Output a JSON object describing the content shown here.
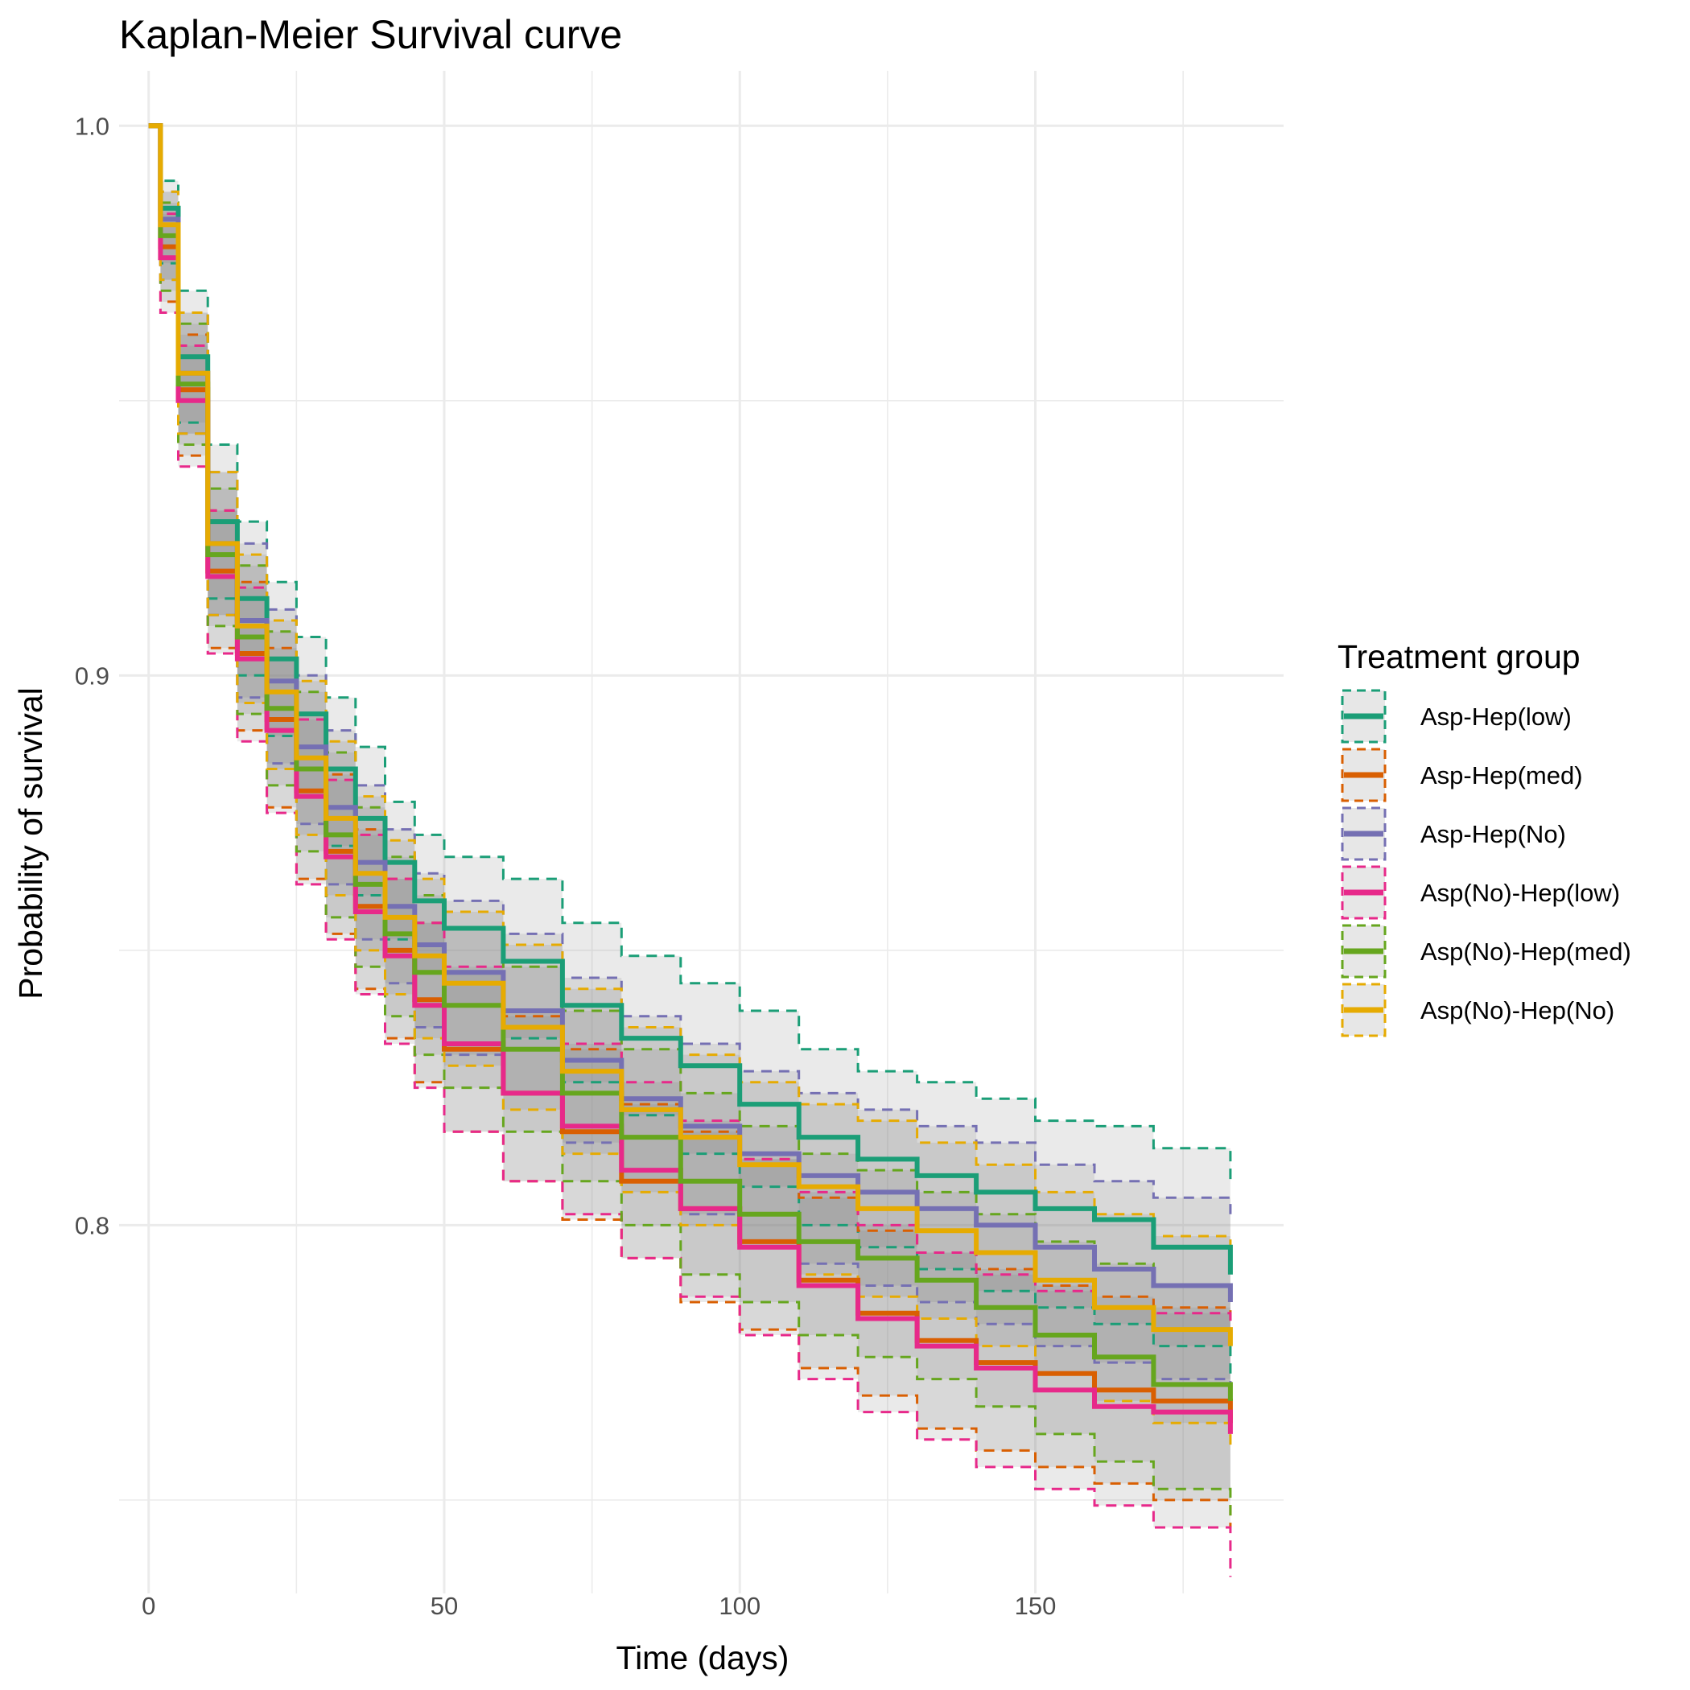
{
  "chart_data": {
    "type": "line",
    "title": "Kaplan-Meier Survival curve",
    "xlabel": "Time (days)",
    "ylabel": "Probability of survival",
    "xlim": [
      -5,
      192
    ],
    "ylim": [
      0.733,
      1.01
    ],
    "x_ticks": [
      0,
      50,
      100,
      150
    ],
    "x_tick_labels": [
      "0",
      "50",
      "100",
      "150"
    ],
    "y_ticks": [
      0.8,
      0.9,
      1.0
    ],
    "y_tick_labels": [
      "0.8",
      "0.9",
      "1.0"
    ],
    "grid": true,
    "legend": {
      "title": "Treatment group",
      "position": "right"
    },
    "x": [
      0,
      2,
      5,
      10,
      15,
      20,
      25,
      30,
      35,
      40,
      45,
      50,
      60,
      70,
      80,
      90,
      100,
      110,
      120,
      130,
      140,
      150,
      160,
      170,
      183
    ],
    "series": [
      {
        "name": "Asp-Hep(low)",
        "color": "#1b9e77",
        "values": [
          1.0,
          0.985,
          0.958,
          0.928,
          0.914,
          0.903,
          0.893,
          0.883,
          0.874,
          0.866,
          0.859,
          0.854,
          0.848,
          0.84,
          0.834,
          0.829,
          0.822,
          0.816,
          0.812,
          0.809,
          0.806,
          0.803,
          0.801,
          0.796,
          0.791
        ],
        "upper": [
          1.0,
          0.99,
          0.97,
          0.942,
          0.928,
          0.917,
          0.907,
          0.896,
          0.887,
          0.877,
          0.871,
          0.867,
          0.863,
          0.855,
          0.849,
          0.844,
          0.839,
          0.832,
          0.828,
          0.826,
          0.823,
          0.819,
          0.818,
          0.814,
          0.808
        ],
        "lower": [
          1.0,
          0.975,
          0.946,
          0.914,
          0.9,
          0.889,
          0.879,
          0.869,
          0.86,
          0.852,
          0.846,
          0.84,
          0.834,
          0.826,
          0.82,
          0.813,
          0.807,
          0.8,
          0.796,
          0.792,
          0.788,
          0.785,
          0.782,
          0.778,
          0.773
        ]
      },
      {
        "name": "Asp-Hep(med)",
        "color": "#d95f02",
        "values": [
          1.0,
          0.978,
          0.952,
          0.919,
          0.904,
          0.892,
          0.879,
          0.868,
          0.858,
          0.85,
          0.841,
          0.832,
          0.824,
          0.817,
          0.808,
          0.803,
          0.797,
          0.79,
          0.784,
          0.779,
          0.775,
          0.773,
          0.77,
          0.768,
          0.764
        ],
        "upper": [
          1.0,
          0.985,
          0.962,
          0.93,
          0.917,
          0.905,
          0.893,
          0.882,
          0.872,
          0.863,
          0.855,
          0.846,
          0.838,
          0.832,
          0.822,
          0.817,
          0.812,
          0.805,
          0.799,
          0.795,
          0.792,
          0.789,
          0.787,
          0.785,
          0.782
        ],
        "lower": [
          1.0,
          0.968,
          0.94,
          0.905,
          0.89,
          0.876,
          0.863,
          0.853,
          0.843,
          0.834,
          0.826,
          0.817,
          0.808,
          0.801,
          0.794,
          0.786,
          0.781,
          0.774,
          0.769,
          0.763,
          0.759,
          0.756,
          0.753,
          0.75,
          0.745
        ]
      },
      {
        "name": "Asp-Hep(No)",
        "color": "#7570b3",
        "values": [
          1.0,
          0.983,
          0.955,
          0.924,
          0.91,
          0.899,
          0.887,
          0.876,
          0.866,
          0.858,
          0.851,
          0.846,
          0.839,
          0.83,
          0.823,
          0.818,
          0.813,
          0.809,
          0.806,
          0.803,
          0.8,
          0.796,
          0.792,
          0.789,
          0.786
        ],
        "upper": [
          1.0,
          0.988,
          0.966,
          0.937,
          0.924,
          0.912,
          0.9,
          0.89,
          0.88,
          0.872,
          0.864,
          0.859,
          0.853,
          0.845,
          0.838,
          0.833,
          0.828,
          0.824,
          0.821,
          0.818,
          0.815,
          0.811,
          0.808,
          0.805,
          0.802
        ],
        "lower": [
          1.0,
          0.972,
          0.944,
          0.911,
          0.896,
          0.884,
          0.873,
          0.862,
          0.852,
          0.844,
          0.836,
          0.831,
          0.824,
          0.815,
          0.808,
          0.802,
          0.797,
          0.793,
          0.789,
          0.786,
          0.782,
          0.778,
          0.775,
          0.772,
          0.769
        ]
      },
      {
        "name": "Asp(No)-Hep(low)",
        "color": "#e7298a",
        "values": [
          1.0,
          0.976,
          0.95,
          0.918,
          0.903,
          0.89,
          0.878,
          0.867,
          0.857,
          0.849,
          0.84,
          0.833,
          0.824,
          0.818,
          0.81,
          0.803,
          0.796,
          0.789,
          0.783,
          0.778,
          0.774,
          0.77,
          0.767,
          0.766,
          0.762
        ],
        "upper": [
          1.0,
          0.984,
          0.96,
          0.93,
          0.916,
          0.903,
          0.892,
          0.881,
          0.871,
          0.863,
          0.855,
          0.847,
          0.839,
          0.833,
          0.826,
          0.819,
          0.812,
          0.806,
          0.8,
          0.795,
          0.791,
          0.788,
          0.785,
          0.784,
          0.781
        ],
        "lower": [
          1.0,
          0.966,
          0.938,
          0.904,
          0.888,
          0.875,
          0.862,
          0.852,
          0.842,
          0.833,
          0.825,
          0.817,
          0.808,
          0.802,
          0.794,
          0.787,
          0.78,
          0.772,
          0.766,
          0.761,
          0.756,
          0.752,
          0.749,
          0.745,
          0.736
        ]
      },
      {
        "name": "Asp(No)-Hep(med)",
        "color": "#66a61e",
        "values": [
          1.0,
          0.98,
          0.953,
          0.922,
          0.907,
          0.894,
          0.883,
          0.871,
          0.862,
          0.853,
          0.846,
          0.84,
          0.832,
          0.824,
          0.816,
          0.808,
          0.802,
          0.797,
          0.794,
          0.79,
          0.785,
          0.78,
          0.776,
          0.771,
          0.768
        ],
        "upper": [
          1.0,
          0.986,
          0.964,
          0.934,
          0.92,
          0.908,
          0.897,
          0.886,
          0.876,
          0.867,
          0.86,
          0.854,
          0.847,
          0.839,
          0.832,
          0.824,
          0.818,
          0.813,
          0.81,
          0.806,
          0.802,
          0.797,
          0.793,
          0.789,
          0.786
        ],
        "lower": [
          1.0,
          0.97,
          0.942,
          0.909,
          0.893,
          0.88,
          0.868,
          0.856,
          0.847,
          0.838,
          0.831,
          0.825,
          0.817,
          0.808,
          0.8,
          0.791,
          0.786,
          0.78,
          0.776,
          0.772,
          0.767,
          0.762,
          0.757,
          0.752,
          0.747
        ]
      },
      {
        "name": "Asp(No)-Hep(No)",
        "color": "#e6ab02",
        "values": [
          1.0,
          0.982,
          0.955,
          0.924,
          0.909,
          0.897,
          0.885,
          0.874,
          0.864,
          0.856,
          0.849,
          0.844,
          0.836,
          0.828,
          0.821,
          0.816,
          0.811,
          0.807,
          0.803,
          0.799,
          0.795,
          0.79,
          0.785,
          0.781,
          0.778
        ],
        "upper": [
          1.0,
          0.988,
          0.966,
          0.937,
          0.922,
          0.91,
          0.899,
          0.888,
          0.878,
          0.87,
          0.863,
          0.857,
          0.851,
          0.843,
          0.836,
          0.831,
          0.826,
          0.822,
          0.819,
          0.815,
          0.811,
          0.806,
          0.802,
          0.798,
          0.794
        ],
        "lower": [
          1.0,
          0.972,
          0.944,
          0.911,
          0.895,
          0.883,
          0.871,
          0.86,
          0.85,
          0.842,
          0.834,
          0.829,
          0.821,
          0.813,
          0.806,
          0.8,
          0.796,
          0.791,
          0.787,
          0.783,
          0.778,
          0.773,
          0.768,
          0.764,
          0.76
        ]
      }
    ]
  }
}
